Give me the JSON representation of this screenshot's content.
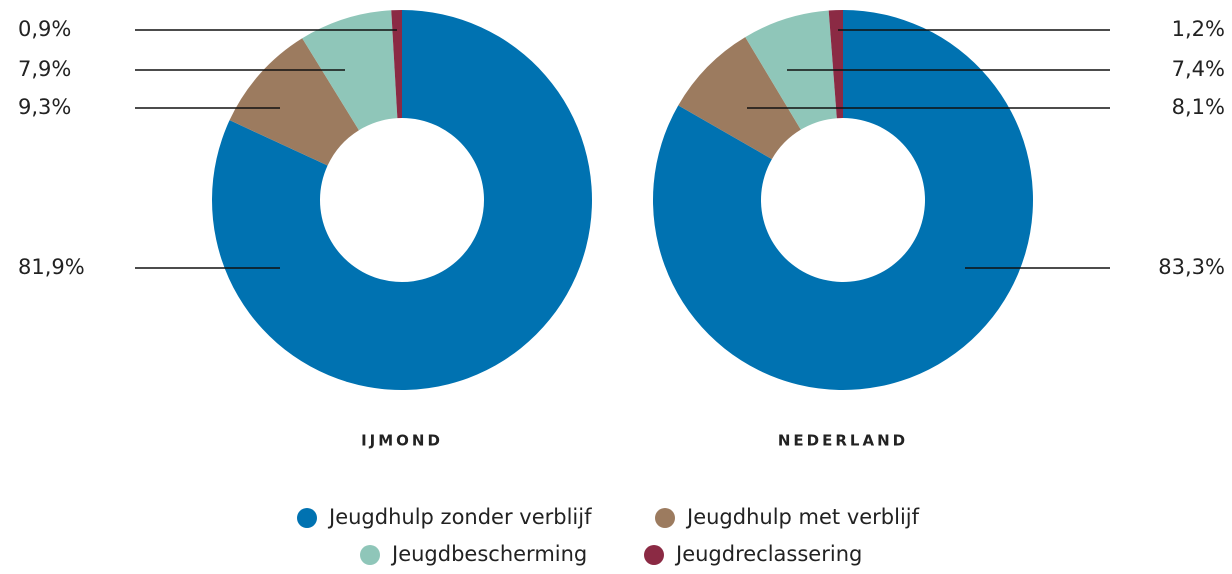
{
  "chart_data": [
    {
      "type": "donut",
      "title": "IJMOND",
      "categories": [
        "Jeugdhulp zonder verblijf",
        "Jeugdhulp met verblijf",
        "Jeugdbescherming",
        "Jeugdreclassering"
      ],
      "values": [
        81.9,
        9.3,
        7.9,
        0.9
      ],
      "value_labels": [
        "81,9%",
        "9,3%",
        "7,9%",
        "0,9%"
      ],
      "colors": [
        "#0072b1",
        "#9c7b5f",
        "#8fc6b9",
        "#8b2a44"
      ]
    },
    {
      "type": "donut",
      "title": "NEDERLAND",
      "categories": [
        "Jeugdhulp zonder verblijf",
        "Jeugdhulp met verblijf",
        "Jeugdbescherming",
        "Jeugdreclassering"
      ],
      "values": [
        83.3,
        8.1,
        7.4,
        1.2
      ],
      "value_labels": [
        "83,3%",
        "8,1%",
        "7,4%",
        "1,2%"
      ],
      "colors": [
        "#0072b1",
        "#9c7b5f",
        "#8fc6b9",
        "#8b2a44"
      ]
    }
  ]
}
